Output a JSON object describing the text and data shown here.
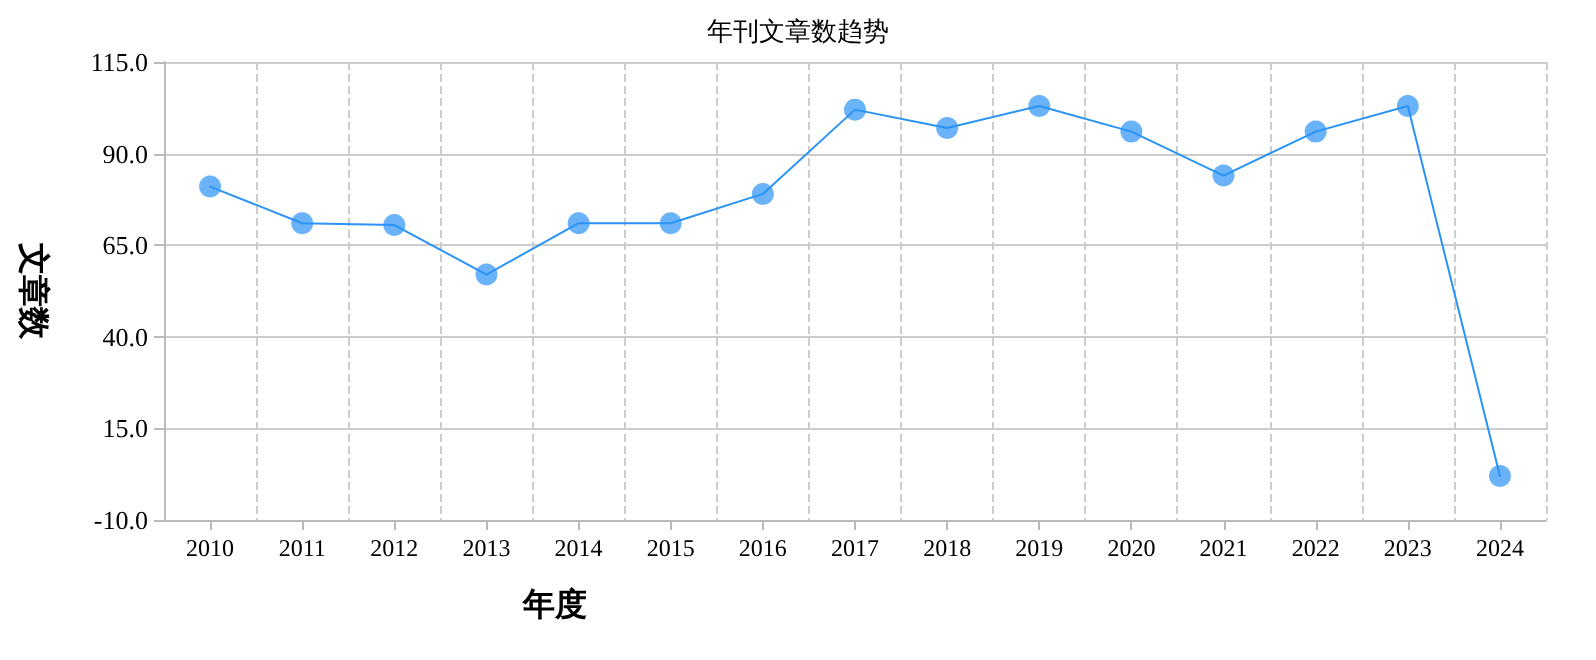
{
  "chart_data": {
    "type": "line",
    "title": "年刊文章数趋势",
    "xlabel": "年度",
    "ylabel": "文章数",
    "categories": [
      "2010",
      "2011",
      "2012",
      "2013",
      "2014",
      "2015",
      "2016",
      "2017",
      "2018",
      "2019",
      "2020",
      "2021",
      "2022",
      "2023",
      "2024"
    ],
    "series": [
      {
        "color": "#2b93f5",
        "values": [
          81,
          71,
          70.5,
          57,
          71,
          71,
          79,
          102,
          97,
          103,
          96,
          84,
          96,
          103,
          2
        ]
      }
    ],
    "ylim": [
      -10,
      115
    ],
    "yticks": [
      {
        "value": -10,
        "label": "-10.0"
      },
      {
        "value": 15,
        "label": "15.0"
      },
      {
        "value": 40,
        "label": "40.0"
      },
      {
        "value": 65,
        "label": "65.0"
      },
      {
        "value": 90,
        "label": "90.0"
      },
      {
        "value": 115,
        "label": "115.0"
      }
    ],
    "grid": true,
    "marker": "circle",
    "line_style": "solid"
  }
}
